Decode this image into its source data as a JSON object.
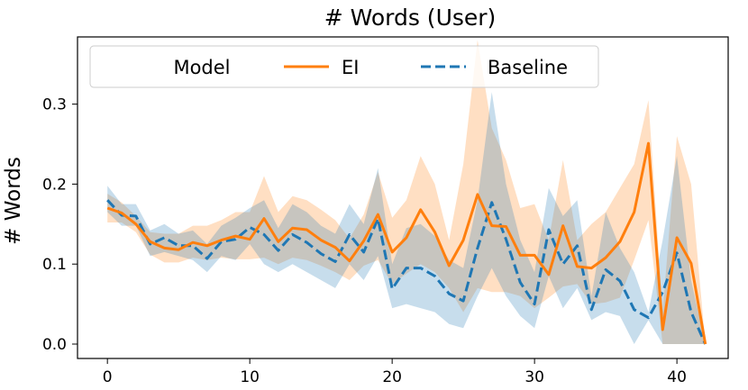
{
  "chart_data": {
    "type": "line",
    "title": "# Words (User)",
    "xlabel": "",
    "ylabel": "# Words",
    "xlim": [
      -2.1,
      43.6
    ],
    "ylim": [
      -0.018,
      0.384
    ],
    "xticks": [
      0,
      10,
      20,
      30,
      40
    ],
    "yticks": [
      0.0,
      0.1,
      0.2,
      0.3
    ],
    "ytick_labels": [
      "0.0",
      "0.1",
      "0.2",
      "0.3"
    ],
    "grid": false,
    "legend": {
      "title": "Model",
      "position": "upper-left",
      "entries": [
        "EI",
        "Baseline"
      ]
    },
    "series": [
      {
        "name": "EI",
        "color": "#ff7f0e",
        "style": "solid",
        "x": [
          0,
          1,
          2,
          3,
          4,
          5,
          6,
          7,
          8,
          9,
          10,
          11,
          12,
          13,
          14,
          15,
          16,
          17,
          18,
          19,
          20,
          21,
          22,
          23,
          24,
          25,
          26,
          27,
          28,
          29,
          30,
          31,
          32,
          33,
          34,
          35,
          36,
          37,
          38,
          39,
          40,
          41,
          42
        ],
        "y": [
          0.17,
          0.164,
          0.15,
          0.128,
          0.12,
          0.118,
          0.127,
          0.123,
          0.13,
          0.135,
          0.131,
          0.157,
          0.128,
          0.145,
          0.143,
          0.13,
          0.121,
          0.104,
          0.129,
          0.162,
          0.115,
          0.133,
          0.168,
          0.14,
          0.098,
          0.13,
          0.187,
          0.148,
          0.147,
          0.111,
          0.111,
          0.087,
          0.148,
          0.097,
          0.095,
          0.108,
          0.128,
          0.165,
          0.251,
          0.018,
          0.133,
          0.101,
          0.0
        ],
        "ci_low": [
          0.152,
          0.152,
          0.14,
          0.112,
          0.102,
          0.102,
          0.108,
          0.105,
          0.108,
          0.106,
          0.106,
          0.108,
          0.1,
          0.108,
          0.105,
          0.098,
          0.09,
          0.08,
          0.098,
          0.105,
          0.075,
          0.088,
          0.1,
          0.09,
          0.07,
          0.04,
          0.07,
          0.065,
          0.065,
          0.06,
          0.045,
          0.058,
          0.072,
          0.075,
          0.05,
          0.052,
          0.058,
          0.105,
          0.155,
          0.0,
          0.0,
          0.0,
          0.0
        ],
        "ci_high": [
          0.188,
          0.177,
          0.16,
          0.14,
          0.138,
          0.138,
          0.148,
          0.148,
          0.155,
          0.165,
          0.165,
          0.21,
          0.165,
          0.185,
          0.18,
          0.168,
          0.155,
          0.132,
          0.162,
          0.215,
          0.158,
          0.18,
          0.235,
          0.2,
          0.13,
          0.225,
          0.38,
          0.27,
          0.23,
          0.17,
          0.175,
          0.13,
          0.23,
          0.13,
          0.15,
          0.165,
          0.195,
          0.225,
          0.305,
          0.04,
          0.26,
          0.2,
          0.0
        ]
      },
      {
        "name": "Baseline",
        "color": "#1f77b4",
        "style": "dashed",
        "x": [
          0,
          1,
          2,
          3,
          4,
          5,
          6,
          7,
          8,
          9,
          10,
          11,
          12,
          13,
          14,
          15,
          16,
          17,
          18,
          19,
          20,
          21,
          22,
          23,
          24,
          25,
          26,
          27,
          28,
          29,
          30,
          31,
          32,
          33,
          34,
          35,
          36,
          37,
          38,
          39,
          40,
          41,
          42
        ],
        "y": [
          0.18,
          0.161,
          0.16,
          0.125,
          0.133,
          0.123,
          0.123,
          0.107,
          0.128,
          0.131,
          0.146,
          0.137,
          0.117,
          0.137,
          0.127,
          0.113,
          0.103,
          0.137,
          0.115,
          0.157,
          0.069,
          0.095,
          0.095,
          0.085,
          0.063,
          0.054,
          0.12,
          0.177,
          0.131,
          0.077,
          0.05,
          0.143,
          0.1,
          0.123,
          0.043,
          0.093,
          0.079,
          0.043,
          0.033,
          0.065,
          0.114,
          0.04,
          0.0
        ],
        "ci_low": [
          0.165,
          0.148,
          0.148,
          0.11,
          0.115,
          0.11,
          0.105,
          0.09,
          0.11,
          0.105,
          0.125,
          0.1,
          0.09,
          0.1,
          0.09,
          0.08,
          0.07,
          0.1,
          0.08,
          0.11,
          0.045,
          0.05,
          0.045,
          0.04,
          0.025,
          0.02,
          0.06,
          0.095,
          0.06,
          0.035,
          0.02,
          0.085,
          0.045,
          0.07,
          0.03,
          0.04,
          0.035,
          0.0,
          0.03,
          0.0,
          0.0,
          0.0,
          0.0
        ],
        "ci_high": [
          0.198,
          0.175,
          0.175,
          0.142,
          0.15,
          0.138,
          0.142,
          0.125,
          0.148,
          0.158,
          0.17,
          0.18,
          0.145,
          0.175,
          0.165,
          0.148,
          0.138,
          0.175,
          0.15,
          0.22,
          0.1,
          0.145,
          0.15,
          0.135,
          0.105,
          0.095,
          0.18,
          0.315,
          0.2,
          0.13,
          0.09,
          0.195,
          0.16,
          0.18,
          0.06,
          0.165,
          0.12,
          0.09,
          0.04,
          0.13,
          0.235,
          0.08,
          0.0
        ]
      }
    ]
  }
}
